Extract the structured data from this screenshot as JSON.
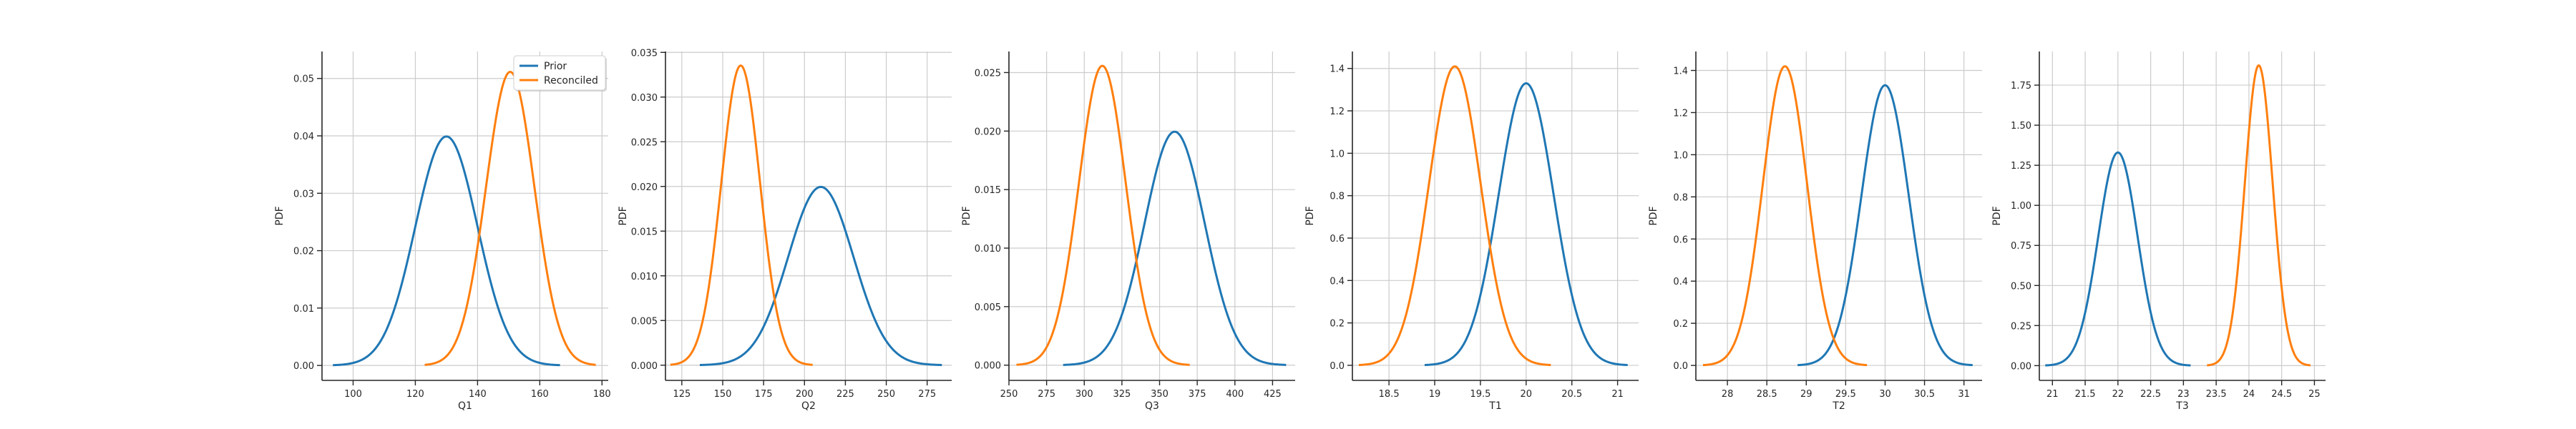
{
  "colors": {
    "prior": "#1f77b4",
    "reconciled": "#ff7f0e",
    "grid": "#cccccc",
    "axis": "#262626"
  },
  "chart_data": [
    {
      "type": "line",
      "xlabel": "Q1",
      "ylabel": "PDF",
      "xlim": [
        90,
        182
      ],
      "ylim": [
        -0.0026,
        0.0547
      ],
      "xticks": [
        100,
        120,
        140,
        160,
        180
      ],
      "yticks": [
        0.0,
        0.01,
        0.02,
        0.03,
        0.04,
        0.05
      ],
      "ytick_labels": [
        "0.00",
        "0.01",
        "0.02",
        "0.03",
        "0.04",
        "0.05"
      ],
      "grid": true,
      "legend": {
        "placement": "top-right",
        "entries": [
          "Prior",
          "Reconciled"
        ]
      },
      "series": [
        {
          "name": "Prior",
          "mean": 130,
          "sd": 10,
          "x_range": [
            93.5,
            166.5
          ],
          "peak": 0.0399
        },
        {
          "name": "Reconciled",
          "mean": 150.5,
          "sd": 7.8,
          "x_range": [
            123,
            178
          ],
          "peak": 0.0515
        }
      ]
    },
    {
      "type": "line",
      "xlabel": "Q2",
      "ylabel": "PDF",
      "xlim": [
        115,
        290
      ],
      "ylim": [
        -0.0017,
        0.0351
      ],
      "xticks": [
        125,
        150,
        175,
        200,
        225,
        250,
        275
      ],
      "yticks": [
        0.0,
        0.005,
        0.01,
        0.015,
        0.02,
        0.025,
        0.03,
        0.035
      ],
      "ytick_labels": [
        "0.000",
        "0.005",
        "0.010",
        "0.015",
        "0.020",
        "0.025",
        "0.030",
        "0.035"
      ],
      "grid": true,
      "series": [
        {
          "name": "Prior",
          "mean": 210,
          "sd": 20,
          "x_range": [
            136,
            284
          ],
          "peak": 0.0199
        },
        {
          "name": "Reconciled",
          "mean": 161,
          "sd": 11.9,
          "x_range": [
            118,
            205
          ],
          "peak": 0.0336
        }
      ]
    },
    {
      "type": "line",
      "xlabel": "Q3",
      "ylabel": "PDF",
      "xlim": [
        250,
        440
      ],
      "ylim": [
        -0.0013,
        0.0268
      ],
      "xticks": [
        250,
        275,
        300,
        325,
        350,
        375,
        400,
        425
      ],
      "yticks": [
        0.0,
        0.005,
        0.01,
        0.015,
        0.02,
        0.025
      ],
      "ytick_labels": [
        "0.000",
        "0.005",
        "0.010",
        "0.015",
        "0.020",
        "0.025"
      ],
      "grid": true,
      "series": [
        {
          "name": "Prior",
          "mean": 360,
          "sd": 20,
          "x_range": [
            286,
            434
          ],
          "peak": 0.0199
        },
        {
          "name": "Reconciled",
          "mean": 312,
          "sd": 15.6,
          "x_range": [
            255,
            370
          ],
          "peak": 0.0256
        }
      ]
    },
    {
      "type": "line",
      "xlabel": "T1",
      "ylabel": "PDF",
      "xlim": [
        18.1,
        21.23
      ],
      "ylim": [
        -0.071,
        1.48
      ],
      "xticks": [
        18.5,
        19.0,
        19.5,
        20.0,
        20.5,
        21.0
      ],
      "yticks": [
        0.0,
        0.2,
        0.4,
        0.6,
        0.8,
        1.0,
        1.2,
        1.4
      ],
      "ytick_labels": [
        "0.0",
        "0.2",
        "0.4",
        "0.6",
        "0.8",
        "1.0",
        "1.2",
        "1.4"
      ],
      "grid": true,
      "series": [
        {
          "name": "Prior",
          "mean": 20.0,
          "sd": 0.3,
          "x_range": [
            18.89,
            21.11
          ],
          "peak": 1.33
        },
        {
          "name": "Reconciled",
          "mean": 19.22,
          "sd": 0.283,
          "x_range": [
            18.17,
            20.27
          ],
          "peak": 1.41
        }
      ]
    },
    {
      "type": "line",
      "xlabel": "T2",
      "ylabel": "PDF",
      "xlim": [
        27.6,
        31.23
      ],
      "ylim": [
        -0.071,
        1.49
      ],
      "xticks": [
        28.0,
        28.5,
        29.0,
        29.5,
        30.0,
        30.5,
        31.0
      ],
      "yticks": [
        0.0,
        0.2,
        0.4,
        0.6,
        0.8,
        1.0,
        1.2,
        1.4
      ],
      "ytick_labels": [
        "0.0",
        "0.2",
        "0.4",
        "0.6",
        "0.8",
        "1.0",
        "1.2",
        "1.4"
      ],
      "grid": true,
      "series": [
        {
          "name": "Prior",
          "mean": 30.0,
          "sd": 0.3,
          "x_range": [
            28.89,
            31.11
          ],
          "peak": 1.33
        },
        {
          "name": "Reconciled",
          "mean": 28.73,
          "sd": 0.281,
          "x_range": [
            27.69,
            29.77
          ],
          "peak": 1.42
        }
      ]
    },
    {
      "type": "line",
      "xlabel": "T3",
      "ylabel": "PDF",
      "xlim": [
        20.8,
        25.17
      ],
      "ylim": [
        -0.092,
        1.96
      ],
      "xticks": [
        21.0,
        21.5,
        22.0,
        22.5,
        23.0,
        23.5,
        24.0,
        24.5,
        25.0
      ],
      "yticks": [
        0.0,
        0.25,
        0.5,
        0.75,
        1.0,
        1.25,
        1.5,
        1.75
      ],
      "ytick_labels": [
        "0.00",
        "0.25",
        "0.50",
        "0.75",
        "1.00",
        "1.25",
        "1.50",
        "1.75"
      ],
      "grid": true,
      "series": [
        {
          "name": "Prior",
          "mean": 22.0,
          "sd": 0.3,
          "x_range": [
            20.89,
            23.11
          ],
          "peak": 1.33
        },
        {
          "name": "Reconciled",
          "mean": 24.15,
          "sd": 0.213,
          "x_range": [
            23.36,
            24.94
          ],
          "peak": 1.87
        }
      ]
    }
  ]
}
